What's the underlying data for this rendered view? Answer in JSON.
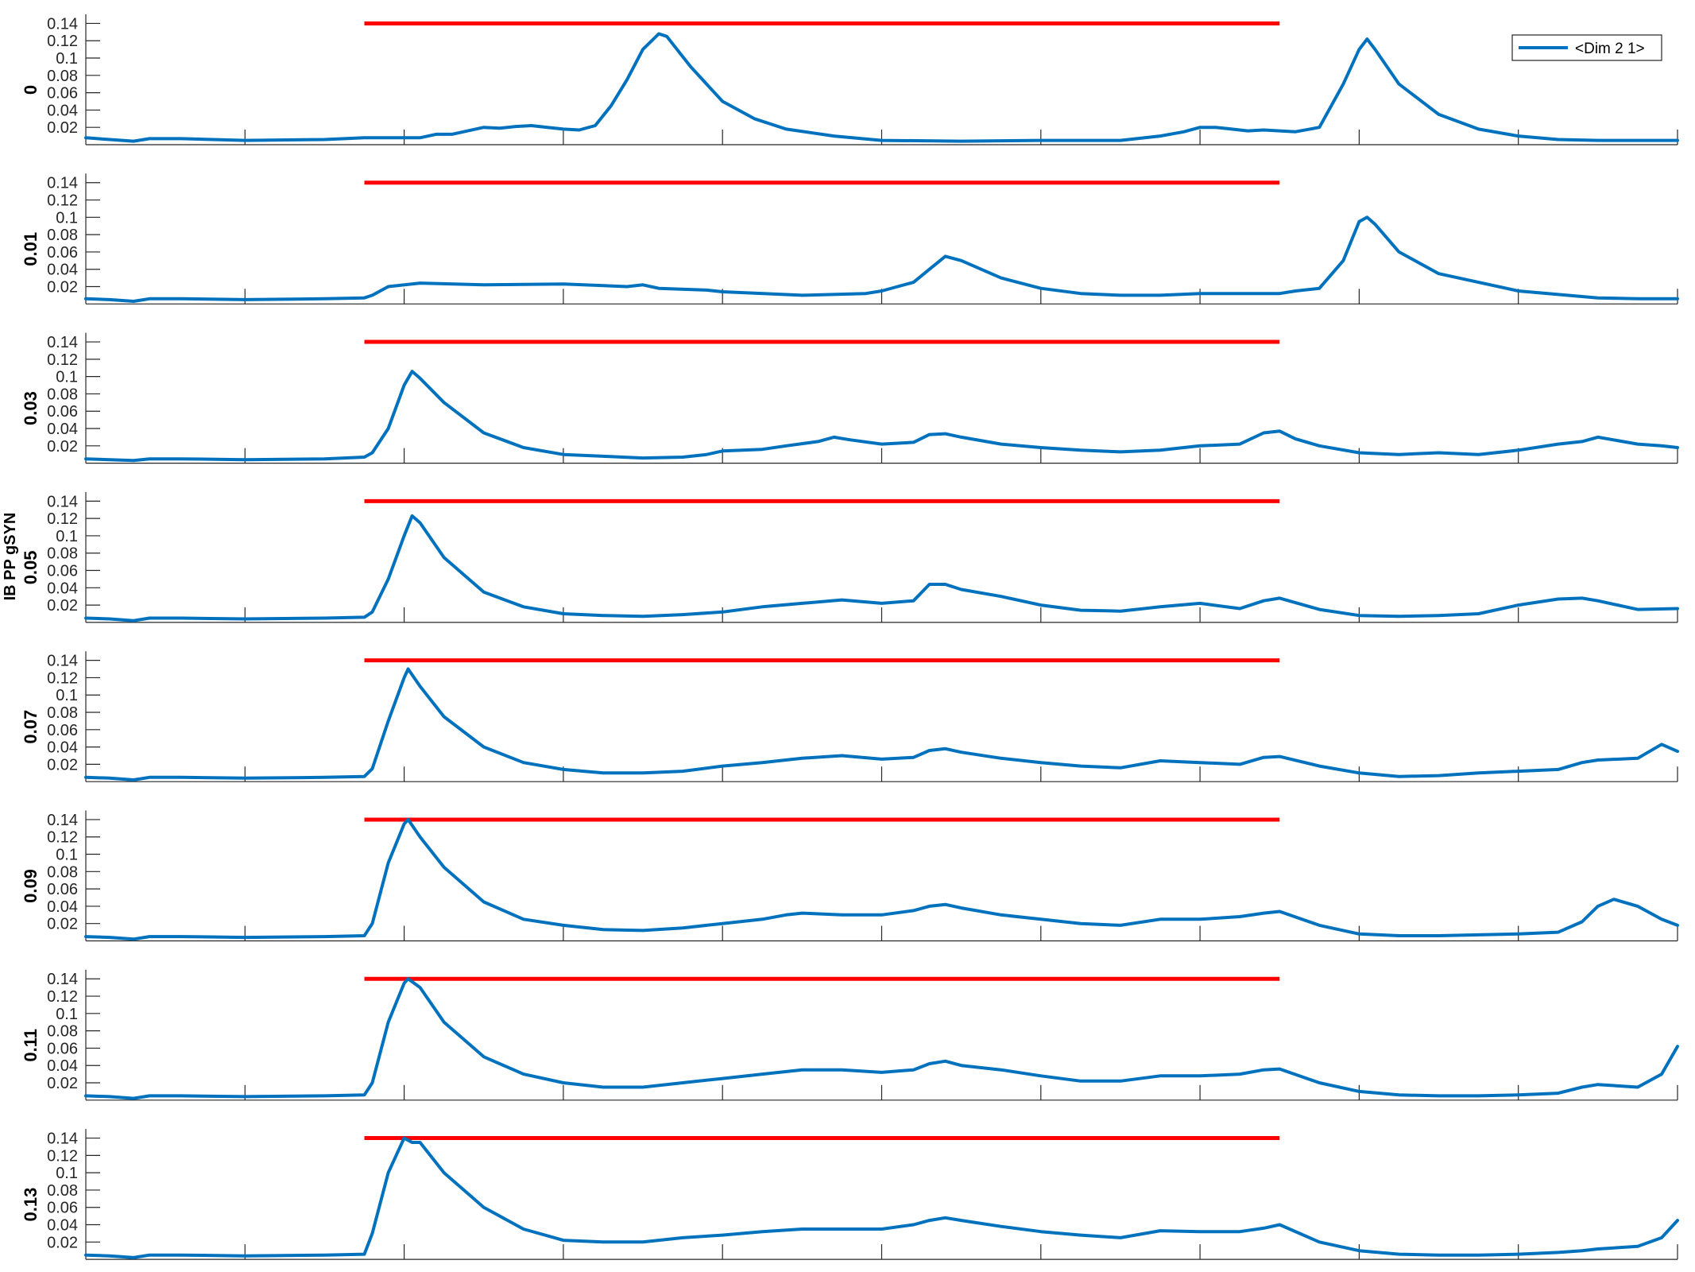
{
  "chart_data": {
    "type": "line",
    "ylabel": "IB PP gSYN",
    "legend": {
      "label": "<Dim 2 1>",
      "placement": "top-right"
    },
    "xlim": [
      0,
      2000
    ],
    "ylim": [
      0,
      0.145
    ],
    "xticks": [
      "0",
      "200",
      "400",
      "600",
      "800",
      "1000",
      "1200",
      "1400",
      "1600",
      "1800",
      "2000"
    ],
    "yticks": [
      "0.02",
      "0.04",
      "0.06",
      "0.08",
      "0.1",
      "0.12",
      "0.14"
    ],
    "colors": {
      "series": "#0072BD",
      "stimulus": "#FF0000"
    },
    "stimulus_bar": {
      "x_start": 350,
      "x_end": 1500,
      "y": 0.14
    },
    "panels": [
      {
        "label": "0",
        "x": [
          0,
          30,
          60,
          80,
          120,
          200,
          300,
          350,
          380,
          420,
          440,
          460,
          500,
          520,
          540,
          560,
          580,
          600,
          620,
          640,
          660,
          680,
          700,
          720,
          730,
          760,
          800,
          840,
          880,
          940,
          1000,
          1100,
          1200,
          1300,
          1350,
          1380,
          1400,
          1420,
          1440,
          1460,
          1480,
          1500,
          1520,
          1550,
          1580,
          1600,
          1610,
          1620,
          1650,
          1700,
          1750,
          1800,
          1850,
          1900,
          2000
        ],
        "y": [
          0.008,
          0.006,
          0.004,
          0.007,
          0.007,
          0.005,
          0.006,
          0.008,
          0.008,
          0.008,
          0.012,
          0.012,
          0.02,
          0.019,
          0.021,
          0.022,
          0.02,
          0.018,
          0.017,
          0.022,
          0.045,
          0.075,
          0.11,
          0.128,
          0.125,
          0.09,
          0.05,
          0.03,
          0.018,
          0.01,
          0.005,
          0.004,
          0.005,
          0.005,
          0.01,
          0.015,
          0.02,
          0.02,
          0.018,
          0.016,
          0.017,
          0.016,
          0.015,
          0.02,
          0.07,
          0.11,
          0.122,
          0.11,
          0.07,
          0.035,
          0.018,
          0.01,
          0.006,
          0.005,
          0.005
        ]
      },
      {
        "label": "0.01",
        "x": [
          0,
          30,
          60,
          80,
          120,
          200,
          300,
          350,
          360,
          380,
          420,
          500,
          600,
          680,
          700,
          720,
          780,
          800,
          900,
          980,
          1000,
          1020,
          1040,
          1060,
          1080,
          1100,
          1150,
          1200,
          1250,
          1300,
          1350,
          1400,
          1500,
          1520,
          1550,
          1580,
          1600,
          1610,
          1620,
          1650,
          1700,
          1800,
          1900,
          1950,
          2000
        ],
        "y": [
          0.006,
          0.005,
          0.003,
          0.006,
          0.006,
          0.005,
          0.006,
          0.007,
          0.01,
          0.02,
          0.024,
          0.022,
          0.023,
          0.02,
          0.022,
          0.018,
          0.016,
          0.014,
          0.01,
          0.012,
          0.015,
          0.02,
          0.025,
          0.04,
          0.055,
          0.05,
          0.03,
          0.018,
          0.012,
          0.01,
          0.01,
          0.012,
          0.012,
          0.015,
          0.018,
          0.05,
          0.095,
          0.1,
          0.092,
          0.06,
          0.035,
          0.015,
          0.007,
          0.006,
          0.006
        ]
      },
      {
        "label": "0.03",
        "x": [
          0,
          30,
          60,
          80,
          120,
          200,
          300,
          350,
          360,
          380,
          400,
          410,
          420,
          450,
          500,
          550,
          600,
          650,
          700,
          750,
          780,
          800,
          850,
          880,
          920,
          940,
          960,
          1000,
          1040,
          1060,
          1080,
          1100,
          1150,
          1200,
          1250,
          1300,
          1350,
          1400,
          1450,
          1480,
          1500,
          1520,
          1550,
          1600,
          1650,
          1700,
          1750,
          1800,
          1850,
          1880,
          1900,
          1950,
          1980,
          2000
        ],
        "y": [
          0.005,
          0.004,
          0.003,
          0.005,
          0.005,
          0.004,
          0.005,
          0.007,
          0.012,
          0.04,
          0.09,
          0.106,
          0.098,
          0.07,
          0.035,
          0.018,
          0.01,
          0.008,
          0.006,
          0.007,
          0.01,
          0.014,
          0.016,
          0.02,
          0.025,
          0.03,
          0.027,
          0.022,
          0.024,
          0.033,
          0.034,
          0.03,
          0.022,
          0.018,
          0.015,
          0.013,
          0.015,
          0.02,
          0.022,
          0.035,
          0.037,
          0.028,
          0.02,
          0.012,
          0.01,
          0.012,
          0.01,
          0.015,
          0.022,
          0.025,
          0.03,
          0.022,
          0.02,
          0.018
        ]
      },
      {
        "label": "0.05",
        "x": [
          0,
          30,
          60,
          80,
          120,
          200,
          300,
          350,
          360,
          380,
          400,
          410,
          420,
          450,
          500,
          550,
          600,
          650,
          700,
          750,
          800,
          850,
          900,
          950,
          1000,
          1040,
          1060,
          1080,
          1100,
          1150,
          1200,
          1250,
          1300,
          1350,
          1400,
          1450,
          1480,
          1500,
          1550,
          1600,
          1650,
          1700,
          1750,
          1800,
          1850,
          1880,
          1900,
          1950,
          2000
        ],
        "y": [
          0.005,
          0.004,
          0.002,
          0.005,
          0.005,
          0.004,
          0.005,
          0.006,
          0.012,
          0.05,
          0.1,
          0.123,
          0.115,
          0.075,
          0.035,
          0.018,
          0.01,
          0.008,
          0.007,
          0.009,
          0.012,
          0.018,
          0.022,
          0.026,
          0.022,
          0.025,
          0.044,
          0.044,
          0.038,
          0.03,
          0.02,
          0.014,
          0.013,
          0.018,
          0.022,
          0.016,
          0.025,
          0.028,
          0.015,
          0.008,
          0.007,
          0.008,
          0.01,
          0.02,
          0.027,
          0.028,
          0.025,
          0.015,
          0.016
        ]
      },
      {
        "label": "0.07",
        "x": [
          0,
          30,
          60,
          80,
          120,
          200,
          300,
          350,
          360,
          380,
          400,
          405,
          420,
          450,
          500,
          550,
          600,
          650,
          700,
          750,
          800,
          850,
          900,
          950,
          1000,
          1040,
          1060,
          1080,
          1100,
          1150,
          1200,
          1250,
          1300,
          1350,
          1400,
          1450,
          1480,
          1500,
          1550,
          1600,
          1650,
          1700,
          1750,
          1800,
          1850,
          1880,
          1900,
          1950,
          1980,
          2000
        ],
        "y": [
          0.005,
          0.004,
          0.002,
          0.005,
          0.005,
          0.004,
          0.005,
          0.006,
          0.015,
          0.07,
          0.12,
          0.13,
          0.11,
          0.075,
          0.04,
          0.022,
          0.014,
          0.01,
          0.01,
          0.012,
          0.018,
          0.022,
          0.027,
          0.03,
          0.026,
          0.028,
          0.036,
          0.038,
          0.034,
          0.027,
          0.022,
          0.018,
          0.016,
          0.024,
          0.022,
          0.02,
          0.028,
          0.029,
          0.018,
          0.01,
          0.006,
          0.007,
          0.01,
          0.012,
          0.014,
          0.022,
          0.025,
          0.027,
          0.043,
          0.035
        ]
      },
      {
        "label": "0.09",
        "x": [
          0,
          30,
          60,
          80,
          120,
          200,
          300,
          350,
          360,
          380,
          400,
          405,
          420,
          450,
          500,
          550,
          600,
          650,
          700,
          750,
          800,
          850,
          880,
          900,
          950,
          1000,
          1040,
          1060,
          1080,
          1100,
          1150,
          1200,
          1250,
          1300,
          1350,
          1400,
          1450,
          1480,
          1500,
          1550,
          1600,
          1650,
          1700,
          1750,
          1800,
          1850,
          1880,
          1900,
          1920,
          1950,
          1980,
          2000
        ],
        "y": [
          0.005,
          0.004,
          0.002,
          0.005,
          0.005,
          0.004,
          0.005,
          0.006,
          0.02,
          0.09,
          0.135,
          0.14,
          0.12,
          0.085,
          0.045,
          0.025,
          0.018,
          0.013,
          0.012,
          0.015,
          0.02,
          0.025,
          0.03,
          0.032,
          0.03,
          0.03,
          0.035,
          0.04,
          0.042,
          0.038,
          0.03,
          0.025,
          0.02,
          0.018,
          0.025,
          0.025,
          0.028,
          0.032,
          0.034,
          0.018,
          0.008,
          0.006,
          0.006,
          0.007,
          0.008,
          0.01,
          0.022,
          0.04,
          0.048,
          0.04,
          0.025,
          0.018
        ]
      },
      {
        "label": "0.11",
        "x": [
          0,
          30,
          60,
          80,
          120,
          200,
          300,
          350,
          360,
          380,
          400,
          405,
          420,
          450,
          500,
          550,
          600,
          650,
          700,
          750,
          800,
          850,
          900,
          950,
          1000,
          1040,
          1060,
          1080,
          1100,
          1150,
          1200,
          1250,
          1300,
          1350,
          1400,
          1450,
          1480,
          1500,
          1550,
          1600,
          1650,
          1700,
          1750,
          1800,
          1850,
          1880,
          1900,
          1950,
          1980,
          2000
        ],
        "y": [
          0.005,
          0.004,
          0.002,
          0.005,
          0.005,
          0.004,
          0.005,
          0.006,
          0.02,
          0.09,
          0.135,
          0.14,
          0.13,
          0.09,
          0.05,
          0.03,
          0.02,
          0.015,
          0.015,
          0.02,
          0.025,
          0.03,
          0.035,
          0.035,
          0.032,
          0.035,
          0.042,
          0.045,
          0.04,
          0.035,
          0.028,
          0.022,
          0.022,
          0.028,
          0.028,
          0.03,
          0.035,
          0.036,
          0.02,
          0.01,
          0.006,
          0.005,
          0.005,
          0.006,
          0.008,
          0.015,
          0.018,
          0.015,
          0.03,
          0.062
        ]
      },
      {
        "label": "0.13",
        "x": [
          0,
          30,
          60,
          80,
          120,
          200,
          300,
          350,
          360,
          380,
          400,
          410,
          420,
          450,
          500,
          550,
          600,
          650,
          700,
          750,
          800,
          850,
          900,
          950,
          1000,
          1040,
          1060,
          1080,
          1100,
          1150,
          1200,
          1250,
          1300,
          1350,
          1400,
          1450,
          1480,
          1500,
          1550,
          1600,
          1650,
          1700,
          1750,
          1800,
          1850,
          1880,
          1900,
          1950,
          1980,
          2000
        ],
        "y": [
          0.005,
          0.004,
          0.002,
          0.005,
          0.005,
          0.004,
          0.005,
          0.006,
          0.03,
          0.1,
          0.14,
          0.135,
          0.135,
          0.1,
          0.06,
          0.035,
          0.022,
          0.02,
          0.02,
          0.025,
          0.028,
          0.032,
          0.035,
          0.035,
          0.035,
          0.04,
          0.045,
          0.048,
          0.045,
          0.038,
          0.032,
          0.028,
          0.025,
          0.033,
          0.032,
          0.032,
          0.036,
          0.04,
          0.02,
          0.01,
          0.006,
          0.005,
          0.005,
          0.006,
          0.008,
          0.01,
          0.012,
          0.015,
          0.025,
          0.045
        ]
      }
    ]
  }
}
